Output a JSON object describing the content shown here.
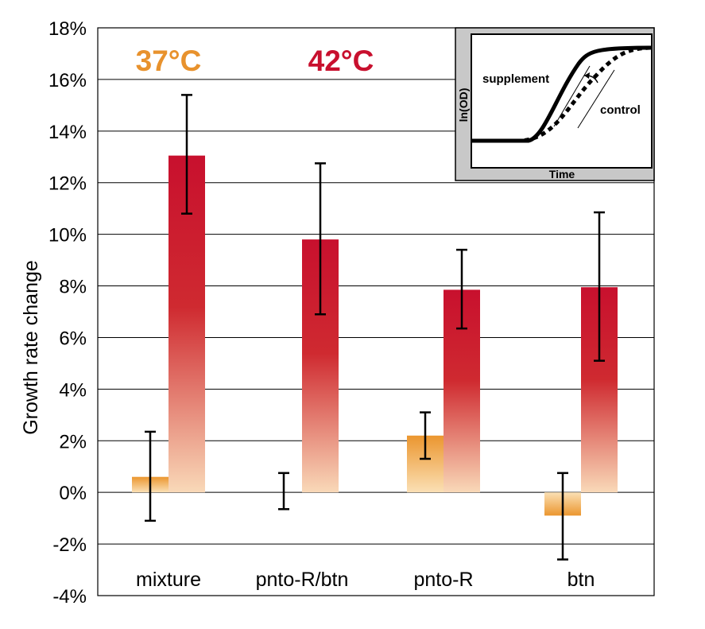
{
  "chart_data": {
    "type": "bar",
    "ylabel": "Growth rate change",
    "ylim": [
      -4,
      18
    ],
    "yticks": [
      -4,
      -2,
      0,
      2,
      4,
      6,
      8,
      10,
      12,
      14,
      16,
      18
    ],
    "ytick_labels": [
      "-4%",
      "-2%",
      "0%",
      "2%",
      "4%",
      "6%",
      "8%",
      "10%",
      "12%",
      "14%",
      "16%",
      "18%"
    ],
    "grid": true,
    "categories": [
      "mixture",
      "pnto-R/btn",
      "pnto-R",
      "btn"
    ],
    "series": [
      {
        "name": "37°C",
        "color": "#e8922d",
        "values": [
          0.6,
          0.0,
          2.2,
          -0.9
        ],
        "err_low": [
          -1.1,
          -0.65,
          1.3,
          -2.6
        ],
        "err_high": [
          2.35,
          0.75,
          3.1,
          0.75
        ]
      },
      {
        "name": "42°C",
        "color": "#c8102e",
        "values": [
          13.05,
          9.8,
          7.85,
          7.95
        ],
        "err_low": [
          10.8,
          6.9,
          6.35,
          5.1
        ],
        "err_high": [
          15.4,
          12.75,
          9.4,
          10.85
        ]
      }
    ],
    "legend": "top-left, colored text labels",
    "inset": {
      "xlabel": "Time",
      "ylabel": "ln(OD)",
      "curves": [
        "supplement",
        "control"
      ]
    }
  }
}
